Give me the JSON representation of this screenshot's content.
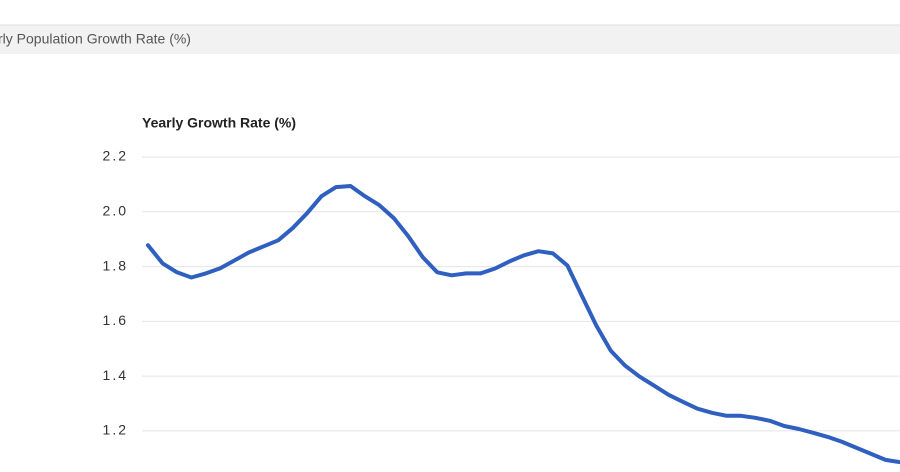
{
  "header": {
    "title": "rly Population Growth Rate (%)"
  },
  "chart_data": {
    "type": "line",
    "title": "Yearly Growth Rate (%)",
    "series": [
      {
        "name": null,
        "color": "#2f5fbf",
        "values": [
          1.878,
          1.812,
          1.779,
          1.76,
          1.775,
          1.794,
          1.823,
          1.852,
          1.874,
          1.896,
          1.94,
          1.995,
          2.057,
          2.09,
          2.094,
          2.057,
          2.024,
          1.977,
          1.911,
          1.834,
          1.779,
          1.768,
          1.775,
          1.775,
          1.793,
          1.819,
          1.841,
          1.856,
          1.848,
          1.804,
          1.694,
          1.585,
          1.493,
          1.438,
          1.398,
          1.365,
          1.332,
          1.306,
          1.281,
          1.266,
          1.255,
          1.255,
          1.248,
          1.237,
          1.218,
          1.207,
          1.193,
          1.178,
          1.16,
          1.138,
          1.116,
          1.094,
          1.086
        ]
      }
    ],
    "ylim": [
      1.05,
      2.2
    ],
    "yticks": [
      1.2,
      1.4,
      1.6,
      1.8,
      {
        "value": 2,
        "label": "2.0"
      },
      2.2
    ],
    "grid": true
  }
}
